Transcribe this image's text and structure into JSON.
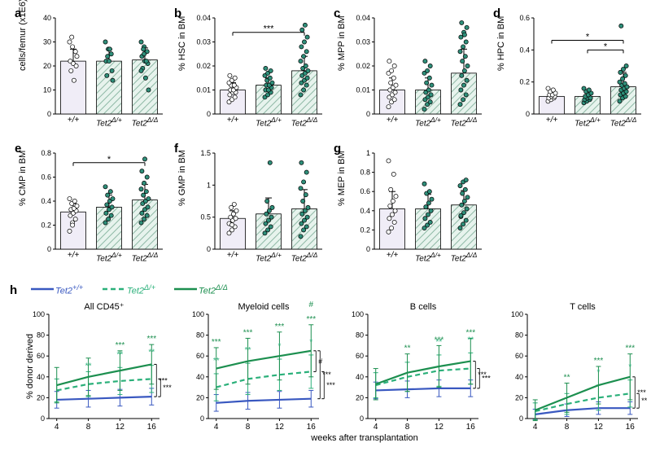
{
  "colors": {
    "bg": "#ffffff",
    "axis": "#000000",
    "bar_fill": [
      "#f0edf7",
      "#e7f3ed",
      "#e7f3ed"
    ],
    "bar_hatch": "#8fb9a6",
    "bar_stroke": "#000000",
    "pt_fill": [
      "#ffffff",
      "#2f8f7a",
      "#2f8f7a"
    ],
    "pt_stroke": "#000000",
    "line_series": [
      "#3958c0",
      "#2bb07a",
      "#1c8f4f"
    ],
    "sig_text_main": "#000000",
    "sig_text_green": "#1c8f4f",
    "sig_text_mid": "#2bb07a"
  },
  "typography": {
    "panel_letter_fontsize": 15,
    "axis_label_fontsize": 11,
    "tick_label_fontsize": 9,
    "xcat_fontsize": 10
  },
  "bar_row1": {
    "x_categories": [
      "+/+",
      "Tet2<sup>Δ/+</sup>",
      "Tet2<sup>Δ/Δ</sup>"
    ],
    "panels": [
      {
        "id": "a",
        "ylabel": "cells/femur (x1E6)",
        "ylim": [
          0,
          40
        ],
        "ticks": [
          0,
          10,
          20,
          30,
          40
        ],
        "values": [
          22,
          22,
          22.5
        ],
        "err": [
          5,
          5,
          5
        ],
        "points": [
          [
            30,
            28,
            26,
            22,
            21,
            20,
            18,
            14,
            24,
            32
          ],
          [
            30,
            27,
            25,
            22,
            22,
            18,
            16,
            27,
            14,
            24
          ],
          [
            30,
            28,
            26,
            24,
            22,
            21,
            19,
            15,
            10,
            27,
            22,
            18,
            25
          ]
        ],
        "sig": []
      },
      {
        "id": "b",
        "ylabel": "% HSC in BM",
        "ylim": [
          0,
          0.04
        ],
        "ticks": [
          0,
          0.01,
          0.02,
          0.03,
          0.04
        ],
        "values": [
          0.01,
          0.012,
          0.018
        ],
        "err": [
          0.003,
          0.003,
          0.006
        ],
        "points": [
          [
            0.005,
            0.006,
            0.007,
            0.008,
            0.009,
            0.009,
            0.01,
            0.01,
            0.011,
            0.012,
            0.012,
            0.013,
            0.014,
            0.015,
            0.016
          ],
          [
            0.007,
            0.008,
            0.009,
            0.01,
            0.01,
            0.011,
            0.012,
            0.012,
            0.013,
            0.014,
            0.015,
            0.016,
            0.017,
            0.018,
            0.019
          ],
          [
            0.008,
            0.01,
            0.012,
            0.013,
            0.014,
            0.015,
            0.016,
            0.017,
            0.018,
            0.019,
            0.02,
            0.022,
            0.024,
            0.026,
            0.028,
            0.03,
            0.032,
            0.035,
            0.037
          ]
        ],
        "sig": [
          {
            "from": 0,
            "to": 2,
            "label": "***",
            "level": 0.034
          }
        ]
      },
      {
        "id": "c",
        "ylabel": "% MPP in BM",
        "ylim": [
          0,
          0.04
        ],
        "ticks": [
          0,
          0.01,
          0.02,
          0.03,
          0.04
        ],
        "values": [
          0.01,
          0.01,
          0.017
        ],
        "err": [
          0.005,
          0.005,
          0.01
        ],
        "points": [
          [
            0.003,
            0.005,
            0.006,
            0.007,
            0.008,
            0.009,
            0.01,
            0.011,
            0.012,
            0.013,
            0.015,
            0.017,
            0.018,
            0.02,
            0.022
          ],
          [
            0.002,
            0.004,
            0.005,
            0.006,
            0.007,
            0.008,
            0.009,
            0.01,
            0.012,
            0.013,
            0.015,
            0.017,
            0.018,
            0.02,
            0.022
          ],
          [
            0.004,
            0.006,
            0.008,
            0.01,
            0.012,
            0.014,
            0.016,
            0.018,
            0.02,
            0.022,
            0.024,
            0.026,
            0.028,
            0.03,
            0.032,
            0.034,
            0.036,
            0.038,
            0.033
          ]
        ],
        "sig": []
      },
      {
        "id": "d",
        "ylabel": "% HPC in BM",
        "ylim": [
          0,
          0.6
        ],
        "ticks": [
          0,
          0.2,
          0.4,
          0.6
        ],
        "values": [
          0.11,
          0.11,
          0.17
        ],
        "err": [
          0.03,
          0.03,
          0.09
        ],
        "points": [
          [
            0.08,
            0.09,
            0.1,
            0.1,
            0.11,
            0.11,
            0.12,
            0.12,
            0.13,
            0.14,
            0.15,
            0.16
          ],
          [
            0.07,
            0.08,
            0.09,
            0.09,
            0.1,
            0.1,
            0.11,
            0.12,
            0.13,
            0.14,
            0.15,
            0.16
          ],
          [
            0.08,
            0.1,
            0.11,
            0.12,
            0.13,
            0.14,
            0.15,
            0.16,
            0.17,
            0.18,
            0.19,
            0.2,
            0.22,
            0.24,
            0.26,
            0.28,
            0.3,
            0.55
          ]
        ],
        "sig": [
          {
            "from": 0,
            "to": 2,
            "label": "*",
            "level": 0.46
          },
          {
            "from": 1,
            "to": 2,
            "label": "*",
            "level": 0.4
          }
        ]
      }
    ]
  },
  "bar_row2": {
    "x_categories": [
      "+/+",
      "Tet2<sup>Δ/+</sup>",
      "Tet2<sup>Δ/Δ</sup>"
    ],
    "panels": [
      {
        "id": "e",
        "ylabel": "% CMP in BM",
        "ylim": [
          0,
          0.8
        ],
        "ticks": [
          0,
          0.2,
          0.4,
          0.6,
          0.8
        ],
        "values": [
          0.31,
          0.35,
          0.41
        ],
        "err": [
          0.07,
          0.1,
          0.13
        ],
        "points": [
          [
            0.15,
            0.22,
            0.25,
            0.28,
            0.3,
            0.32,
            0.33,
            0.34,
            0.36,
            0.38,
            0.4,
            0.42,
            0.2
          ],
          [
            0.22,
            0.25,
            0.28,
            0.3,
            0.33,
            0.35,
            0.37,
            0.4,
            0.42,
            0.45,
            0.48,
            0.52
          ],
          [
            0.22,
            0.25,
            0.28,
            0.3,
            0.33,
            0.35,
            0.38,
            0.4,
            0.42,
            0.45,
            0.48,
            0.5,
            0.55,
            0.6,
            0.65,
            0.75
          ]
        ],
        "sig": [
          {
            "from": 0,
            "to": 2,
            "label": "*",
            "level": 0.72
          }
        ]
      },
      {
        "id": "f",
        "ylabel": "% GMP in BM",
        "ylim": [
          0,
          1.5
        ],
        "ticks": [
          0,
          0.5,
          1.0,
          1.5
        ],
        "values": [
          0.48,
          0.55,
          0.63
        ],
        "err": [
          0.12,
          0.25,
          0.3
        ],
        "points": [
          [
            0.25,
            0.3,
            0.35,
            0.4,
            0.45,
            0.48,
            0.5,
            0.55,
            0.6,
            0.65,
            0.7,
            0.4,
            0.38
          ],
          [
            0.25,
            0.3,
            0.35,
            0.4,
            0.45,
            0.5,
            0.55,
            0.6,
            0.65,
            0.75,
            1.35
          ],
          [
            0.2,
            0.3,
            0.35,
            0.4,
            0.45,
            0.5,
            0.55,
            0.6,
            0.65,
            0.75,
            0.85,
            0.95,
            1.05,
            1.2,
            1.35
          ]
        ],
        "sig": []
      },
      {
        "id": "g",
        "ylabel": "% MEP in BM",
        "ylim": [
          0,
          1.0
        ],
        "ticks": [
          0,
          0.2,
          0.4,
          0.6,
          0.8,
          1.0
        ],
        "values": [
          0.42,
          0.42,
          0.46
        ],
        "err": [
          0.18,
          0.15,
          0.15
        ],
        "points": [
          [
            0.18,
            0.22,
            0.28,
            0.32,
            0.36,
            0.4,
            0.45,
            0.5,
            0.55,
            0.62,
            0.78,
            0.92
          ],
          [
            0.22,
            0.25,
            0.28,
            0.32,
            0.36,
            0.4,
            0.44,
            0.48,
            0.52,
            0.58,
            0.6,
            0.68
          ],
          [
            0.22,
            0.26,
            0.3,
            0.34,
            0.38,
            0.42,
            0.46,
            0.5,
            0.54,
            0.58,
            0.62,
            0.66,
            0.7,
            0.72,
            0.35
          ]
        ],
        "sig": []
      }
    ]
  },
  "line_row": {
    "id": "h",
    "x_values": [
      4,
      8,
      12,
      16
    ],
    "x_label": "weeks after transplantation",
    "series_labels": [
      "Tet2<sup>+/+</sup>",
      "Tet2<sup>Δ/+</sup>",
      "Tet2<sup>Δ/Δ</sup>"
    ],
    "series_style": [
      "solid",
      "dashed",
      "solid"
    ],
    "panels": [
      {
        "title": "All CD45⁺",
        "ylim": [
          0,
          100
        ],
        "yticks": [
          0,
          20,
          40,
          60,
          80,
          100
        ],
        "y_label": "% donor derived",
        "series": [
          [
            18,
            19,
            20,
            21
          ],
          [
            27,
            33,
            36,
            38
          ],
          [
            32,
            40,
            46,
            52
          ]
        ],
        "err": [
          [
            8,
            8,
            8,
            8
          ],
          [
            11,
            12,
            13,
            13
          ],
          [
            17,
            18,
            19,
            19
          ]
        ],
        "sig_top": [
          {
            "t": 8,
            "label": "**",
            "c": 1
          },
          {
            "t": 12,
            "label": "***",
            "c": 2
          },
          {
            "t": 12,
            "label": "**",
            "c": 1
          },
          {
            "t": 16,
            "label": "***",
            "c": 2
          },
          {
            "t": 16,
            "label": "**",
            "c": 1
          }
        ],
        "bracket_right": [
          {
            "pair": [
              0,
              2
            ],
            "label": "***"
          },
          {
            "pair": [
              0,
              1
            ],
            "label": "***"
          }
        ]
      },
      {
        "title": "Myeloid cells",
        "ylim": [
          0,
          100
        ],
        "yticks": [
          0,
          20,
          40,
          60,
          80,
          100
        ],
        "y_label": "",
        "series": [
          [
            15,
            17,
            18,
            19
          ],
          [
            30,
            38,
            42,
            45
          ],
          [
            48,
            55,
            60,
            65
          ]
        ],
        "err": [
          [
            8,
            8,
            8,
            8
          ],
          [
            13,
            15,
            15,
            16
          ],
          [
            20,
            22,
            23,
            25
          ]
        ],
        "sig_top": [
          {
            "t": 4,
            "label": "***",
            "c": 2
          },
          {
            "t": 4,
            "label": "**",
            "c": 1
          },
          {
            "t": 8,
            "label": "***",
            "c": 2
          },
          {
            "t": 8,
            "label": "**",
            "c": 1
          },
          {
            "t": 12,
            "label": "***",
            "c": 2
          },
          {
            "t": 12,
            "label": "*",
            "c": 1
          },
          {
            "t": 16,
            "label": "***",
            "c": 2
          },
          {
            "t": 16,
            "label": "*",
            "c": 1
          },
          {
            "t": 16,
            "label": "#",
            "c": 2
          }
        ],
        "bracket_right": [
          {
            "pair": [
              1,
              2
            ],
            "label": "#"
          },
          {
            "pair": [
              0,
              2
            ],
            "label": "***"
          },
          {
            "pair": [
              0,
              1
            ],
            "label": "***"
          }
        ]
      },
      {
        "title": "B cells",
        "ylim": [
          0,
          100
        ],
        "yticks": [
          0,
          20,
          40,
          60,
          80,
          100
        ],
        "y_label": "",
        "series": [
          [
            27,
            28,
            29,
            29
          ],
          [
            32,
            40,
            46,
            48
          ],
          [
            33,
            44,
            50,
            55
          ]
        ],
        "err": [
          [
            8,
            8,
            8,
            8
          ],
          [
            12,
            14,
            15,
            15
          ],
          [
            15,
            18,
            20,
            22
          ]
        ],
        "sig_top": [
          {
            "t": 8,
            "label": "**",
            "c": 2
          },
          {
            "t": 12,
            "label": "***",
            "c": 2
          },
          {
            "t": 12,
            "label": "**",
            "c": 1
          },
          {
            "t": 16,
            "label": "***",
            "c": 2
          },
          {
            "t": 16,
            "label": "**",
            "c": 1
          }
        ],
        "bracket_right": [
          {
            "pair": [
              0,
              2
            ],
            "label": "***"
          },
          {
            "pair": [
              0,
              1
            ],
            "label": "***"
          }
        ]
      },
      {
        "title": "T cells",
        "ylim": [
          0,
          100
        ],
        "yticks": [
          0,
          20,
          40,
          60,
          80,
          100
        ],
        "y_label": "",
        "series": [
          [
            4,
            8,
            10,
            10
          ],
          [
            7,
            14,
            20,
            24
          ],
          [
            8,
            20,
            32,
            40
          ]
        ],
        "err": [
          [
            5,
            6,
            6,
            6
          ],
          [
            8,
            10,
            12,
            13
          ],
          [
            10,
            14,
            18,
            22
          ]
        ],
        "sig_top": [
          {
            "t": 8,
            "label": "**",
            "c": 2
          },
          {
            "t": 12,
            "label": "***",
            "c": 2
          },
          {
            "t": 12,
            "label": "*",
            "c": 1
          },
          {
            "t": 16,
            "label": "***",
            "c": 2
          },
          {
            "t": 16,
            "label": "*",
            "c": 1
          }
        ],
        "bracket_right": [
          {
            "pair": [
              0,
              2
            ],
            "label": "***"
          },
          {
            "pair": [
              0,
              1
            ],
            "label": "**"
          }
        ]
      }
    ]
  }
}
